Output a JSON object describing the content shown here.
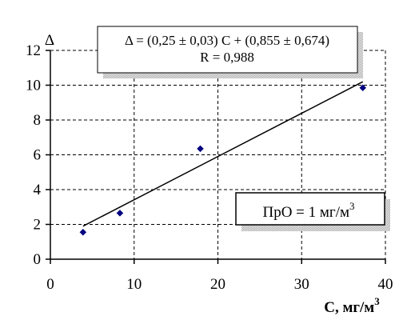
{
  "chart_data": {
    "type": "scatter",
    "xlabel": "C, мг/м",
    "xlabel_superscript": "3",
    "ylabel": "Δ",
    "xlim": [
      0,
      40
    ],
    "ylim": [
      0,
      12
    ],
    "x_ticks": [
      0,
      10,
      20,
      30,
      40
    ],
    "y_ticks": [
      0,
      2,
      4,
      6,
      8,
      10,
      12
    ],
    "x_tick_labels": [
      "0",
      "10",
      "20",
      "30",
      "40"
    ],
    "y_tick_labels": [
      "0",
      "2",
      "4",
      "6",
      "8",
      "10",
      "12"
    ],
    "grid": "dashed",
    "points": [
      {
        "x": 3.9,
        "y": 1.55
      },
      {
        "x": 8.3,
        "y": 2.65
      },
      {
        "x": 17.9,
        "y": 6.35
      },
      {
        "x": 37.3,
        "y": 9.85
      }
    ],
    "fit_line": {
      "x_start": 3.9,
      "y_start": 1.9,
      "x_end": 37.3,
      "y_end": 10.2
    },
    "marker_color": "#000080",
    "line_color": "#000000",
    "annotations": {
      "equation": "Δ = (0,25 ± 0,03) C + (0,855 ± 0,674)",
      "r_value": "R = 0,988",
      "limit_main": "ПрО = 1 мг/м",
      "limit_superscript": "3"
    }
  }
}
